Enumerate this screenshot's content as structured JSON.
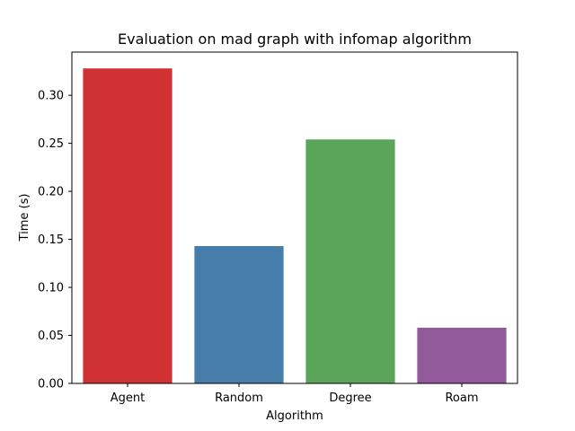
{
  "chart_data": {
    "type": "bar",
    "title": "Evaluation on mad graph with infomap algorithm",
    "xlabel": "Algorithm",
    "ylabel": "Time (s)",
    "categories": [
      "Agent",
      "Random",
      "Degree",
      "Roam"
    ],
    "values": [
      0.328,
      0.143,
      0.254,
      0.058
    ],
    "colors": [
      "#d03234",
      "#477dab",
      "#5aa55a",
      "#925a9b"
    ],
    "ylim": [
      0,
      0.345
    ],
    "yticks": [
      0.0,
      0.05,
      0.1,
      0.15,
      0.2,
      0.25,
      0.3
    ],
    "ytick_labels": [
      "0.00",
      "0.05",
      "0.10",
      "0.15",
      "0.20",
      "0.25",
      "0.30"
    ],
    "grid": false,
    "legend": "none"
  }
}
